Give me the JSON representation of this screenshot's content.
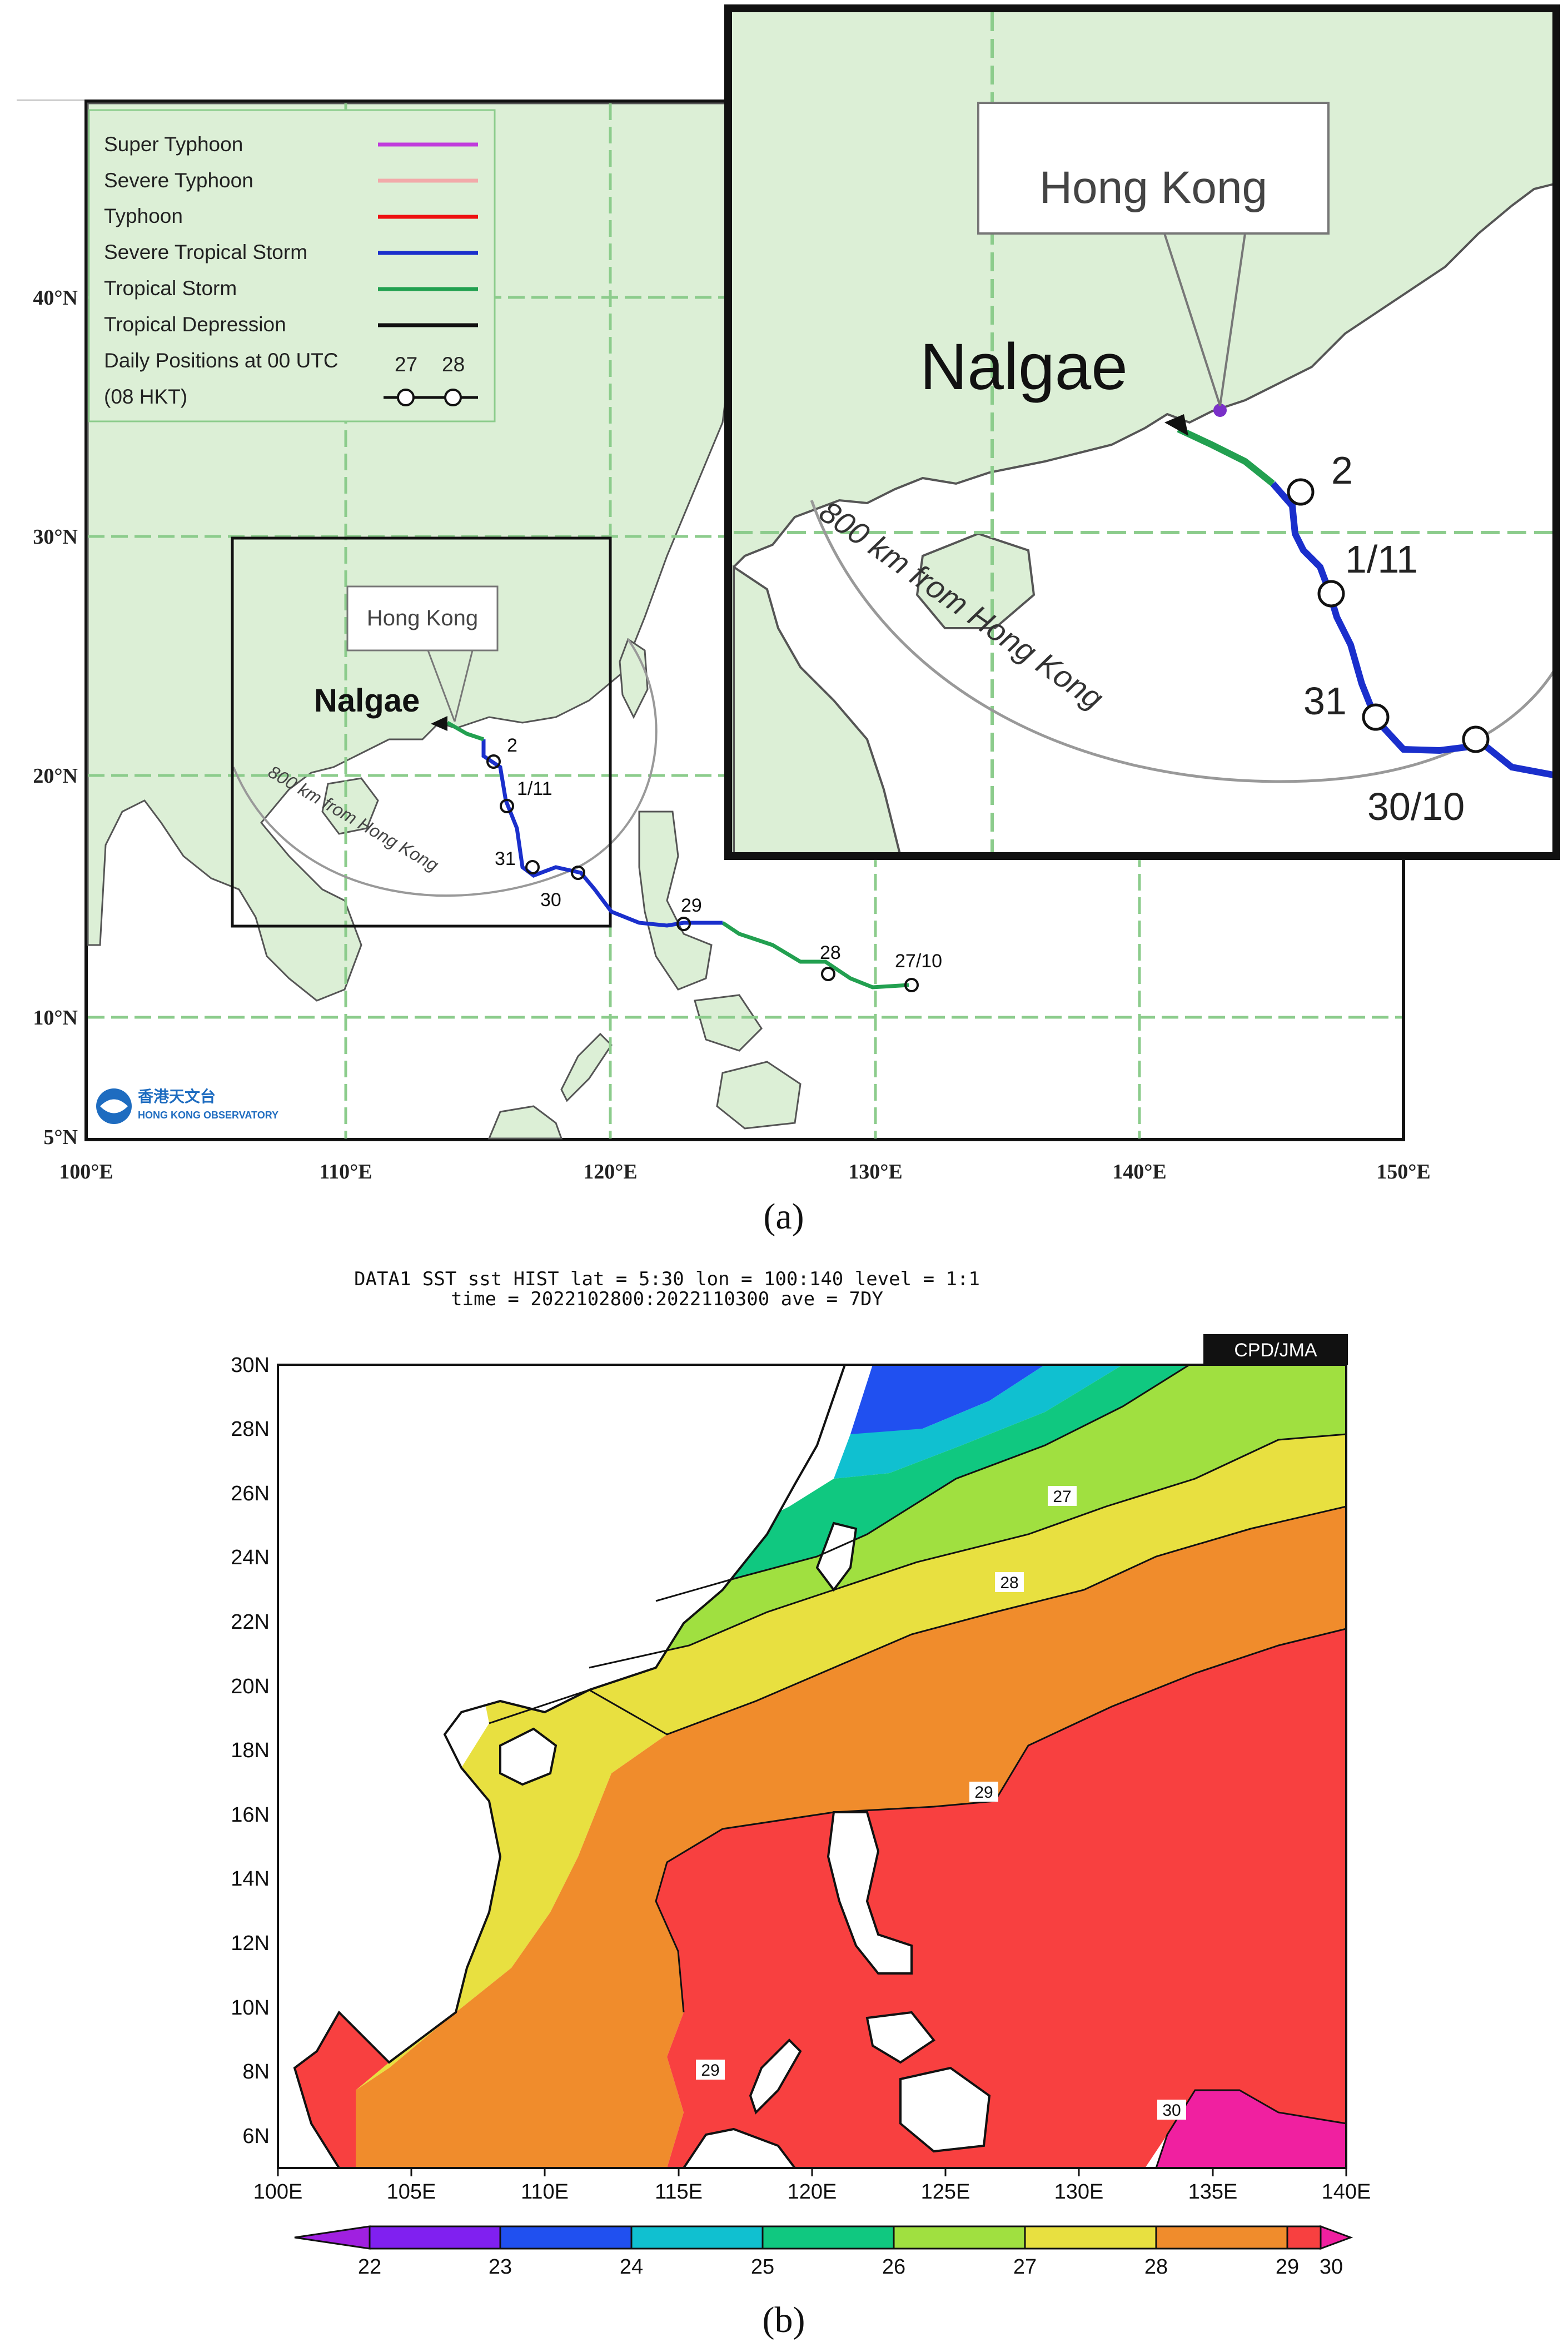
{
  "panel_a": {
    "caption": "(a)",
    "legend": [
      {
        "label": "Super Typhoon",
        "color": "#c03cdc"
      },
      {
        "label": "Severe Typhoon",
        "color": "#f2aaaa"
      },
      {
        "label": "Typhoon",
        "color": "#ee1111"
      },
      {
        "label": "Severe Tropical Storm",
        "color": "#1a2fcc"
      },
      {
        "label": "Tropical Storm",
        "color": "#22a050"
      },
      {
        "label": "Tropical Depression",
        "color": "#111111"
      }
    ],
    "legend_daily": "Daily Positions at 00 UTC",
    "legend_hkt": "(08 HKT)",
    "legend_d1": "27",
    "legend_d2": "28",
    "lat_labels": [
      "40°N",
      "30°N",
      "20°N",
      "10°N",
      "5°N"
    ],
    "lon_labels": [
      "100°E",
      "110°E",
      "120°E",
      "130°E",
      "140°E",
      "150°E"
    ],
    "storm_name": "Nalgae",
    "hk_label": "Hong Kong",
    "range_label": "800 km from Hong Kong",
    "position_labels": [
      "27/10",
      "28",
      "29",
      "30",
      "31",
      "1/11",
      "2"
    ],
    "logo_cn": "香港天文台",
    "logo_en": "HONG KONG OBSERVATORY",
    "inset": {
      "hk_label": "Hong Kong",
      "storm_name": "Nalgae",
      "range_label": "800 km from Hong Kong",
      "position_labels": [
        "2",
        "1/11",
        "31",
        "30/10"
      ]
    },
    "colors": {
      "land": "#dcefd6",
      "sea": "#ffffff",
      "grid": "#8ccc8c",
      "coast": "#555555"
    }
  },
  "panel_b": {
    "caption": "(b)",
    "header_line1": "DATA1   SST   sst   HIST   lat = 5:30   lon = 100:140   level = 1:1",
    "header_line2": "time = 2022102800:2022110300   ave = 7DY",
    "badge": "CPD/JMA",
    "lat_labels": [
      "30N",
      "28N",
      "26N",
      "24N",
      "22N",
      "20N",
      "18N",
      "16N",
      "14N",
      "12N",
      "10N",
      "8N",
      "6N"
    ],
    "lon_labels": [
      "100E",
      "105E",
      "110E",
      "115E",
      "120E",
      "125E",
      "130E",
      "135E",
      "140E"
    ],
    "contour_labels": [
      "27",
      "28",
      "29",
      "29",
      "30"
    ],
    "colorbar_labels": [
      "22",
      "23",
      "24",
      "25",
      "26",
      "27",
      "28",
      "29",
      "30"
    ],
    "colorbar_colors": [
      "#a020e0",
      "#8020f0",
      "#2050f0",
      "#10c0d0",
      "#10c880",
      "#a0e040",
      "#e8e040",
      "#f08c2c",
      "#f84040",
      "#f020a0"
    ]
  }
}
